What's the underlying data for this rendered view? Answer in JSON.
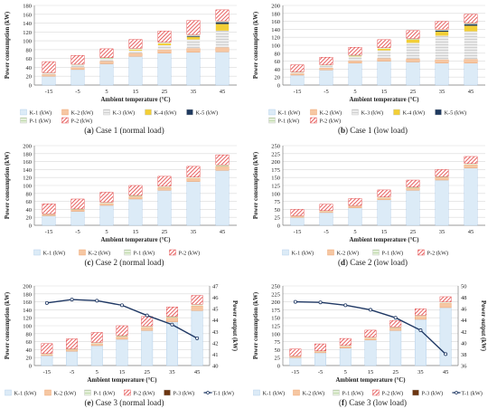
{
  "colors": {
    "K-1": "#dcebf7",
    "K-2": "#f6c7a3",
    "K-3": "#d6d6d6",
    "K-4": "#f3cf36",
    "K-5": "#1f3a5f",
    "P-1": "#d3e6c4",
    "P-2": "#e13a3a",
    "P-3": "#6b3510",
    "T-1": "#1f3864",
    "grid": "#d9d9d9",
    "axis": "#7f7f7f"
  },
  "panels": [
    {
      "label": "(a)",
      "caption": "Case 1 (normal load)",
      "ylabel": "Power consumption (kW)",
      "xlabel": "Ambient temperature (°C)",
      "legend": [
        "K-1 (kW)",
        "K-2 (kW)",
        "K-3 (kW)",
        "K-4 (kW)",
        "K-5 (kW)",
        "P-1 (kW)",
        "P-2 (kW)"
      ]
    },
    {
      "label": "(b)",
      "caption": "Case 1 (low load)",
      "ylabel": "Power consumption (kW)",
      "xlabel": "Ambient temperature (°C)",
      "legend": [
        "K-1 (kW)",
        "K-2 (kW)",
        "K-3 (kW)",
        "K-4 (kW)",
        "K-5 (kW)",
        "P-1 (kW)",
        "P-2 (kW)"
      ]
    },
    {
      "label": "(c)",
      "caption": "Case 2 (normal load)",
      "ylabel": "Power consumption (kW)",
      "xlabel": "Ambient temperature (°C)",
      "legend": [
        "K-1 (kW)",
        "K-2 (kW)",
        "P-1 (kW)",
        "P-2 (kW)"
      ]
    },
    {
      "label": "(d)",
      "caption": "Case 2 (low load)",
      "ylabel": "Power consumption (kW)",
      "xlabel": "Ambient temperature (°C)",
      "legend": [
        "K-1 (kW)",
        "K-2 (kW)",
        "P-1 (kW)",
        "P-2 (kW)"
      ]
    },
    {
      "label": "(e)",
      "caption": "Case 3 (normal load)",
      "ylabel": "Power consumption (kW)",
      "ylabel2": "Power output (kW)",
      "xlabel": "Ambient temperature (°C)",
      "legend": [
        "K-1 (kW)",
        "K-2 (kW)",
        "P-1 (kW)",
        "P-2 (kW)",
        "P-3 (kW)",
        "T-1 (kW)"
      ]
    },
    {
      "label": "(f)",
      "caption": "Case 3 (low load)",
      "ylabel": "Power consumption (kW)",
      "ylabel2": "Power output (kW)",
      "xlabel": "Ambient temperature (°C)",
      "legend": [
        "K-1 (kW)",
        "K-2 (kW)",
        "P-1 (kW)",
        "P-2 (kW)",
        "P-3 (kW)",
        "T-1 (kW)"
      ]
    }
  ],
  "chart_data": [
    {
      "type": "bar",
      "stacked": true,
      "title": "Case 1 (normal load)",
      "categories": [
        "-15",
        "-5",
        "5",
        "15",
        "25",
        "35",
        "45"
      ],
      "xlabel": "Ambient temperature (°C)",
      "ylabel": "Power consumption (kW)",
      "ylim": [
        0,
        180
      ],
      "yticks": [
        0,
        20,
        40,
        60,
        80,
        100,
        120,
        140,
        160,
        180
      ],
      "series": [
        {
          "name": "K-1 (kW)",
          "values": [
            20,
            35,
            48,
            65,
            72,
            74,
            75
          ]
        },
        {
          "name": "K-2 (kW)",
          "values": [
            4,
            5,
            6,
            7,
            8,
            9,
            10
          ]
        },
        {
          "name": "K-3 (kW)",
          "values": [
            2,
            4,
            5,
            6,
            10,
            20,
            38
          ]
        },
        {
          "name": "K-4 (kW)",
          "values": [
            0,
            0,
            0,
            2,
            4,
            6,
            15
          ]
        },
        {
          "name": "K-5 (kW)",
          "values": [
            0,
            0,
            0,
            0,
            0,
            2,
            4
          ]
        },
        {
          "name": "P-1 (kW)",
          "values": [
            2,
            3,
            3,
            3,
            3,
            3,
            3
          ]
        },
        {
          "name": "P-2 (kW)",
          "values": [
            25,
            20,
            20,
            20,
            25,
            32,
            25
          ]
        }
      ]
    },
    {
      "type": "bar",
      "stacked": true,
      "title": "Case 1 (low load)",
      "categories": [
        "-15",
        "-5",
        "5",
        "15",
        "25",
        "35",
        "45"
      ],
      "xlabel": "Ambient temperature (°C)",
      "ylabel": "Power consumption (kW)",
      "ylim": [
        0,
        200
      ],
      "yticks": [
        0,
        20,
        40,
        60,
        80,
        100,
        120,
        140,
        160,
        180,
        200
      ],
      "series": [
        {
          "name": "K-1 (kW)",
          "values": [
            25,
            38,
            55,
            60,
            58,
            55,
            55
          ]
        },
        {
          "name": "K-2 (kW)",
          "values": [
            4,
            5,
            6,
            7,
            8,
            9,
            10
          ]
        },
        {
          "name": "K-3 (kW)",
          "values": [
            2,
            5,
            10,
            20,
            40,
            60,
            70
          ]
        },
        {
          "name": "K-4 (kW)",
          "values": [
            0,
            0,
            1,
            4,
            8,
            10,
            14
          ]
        },
        {
          "name": "K-5 (kW)",
          "values": [
            0,
            0,
            0,
            0,
            0,
            3,
            4
          ]
        },
        {
          "name": "P-1 (kW)",
          "values": [
            2,
            3,
            3,
            3,
            3,
            3,
            3
          ]
        },
        {
          "name": "P-2 (kW)",
          "values": [
            18,
            19,
            20,
            20,
            20,
            20,
            22
          ]
        }
      ]
    },
    {
      "type": "bar",
      "stacked": true,
      "title": "Case 2 (normal load)",
      "categories": [
        "-15",
        "-5",
        "5",
        "15",
        "25",
        "35",
        "45"
      ],
      "xlabel": "Ambient temperature (°C)",
      "ylabel": "Power consumption (kW)",
      "ylim": [
        0,
        200
      ],
      "yticks": [
        0,
        20,
        40,
        60,
        80,
        100,
        120,
        140,
        160,
        180,
        200
      ],
      "series": [
        {
          "name": "K-1 (kW)",
          "values": [
            24,
            35,
            50,
            66,
            88,
            110,
            138
          ]
        },
        {
          "name": "K-2 (kW)",
          "values": [
            3,
            4,
            5,
            6,
            7,
            8,
            10
          ]
        },
        {
          "name": "P-1 (kW)",
          "values": [
            2,
            2,
            3,
            3,
            3,
            3,
            4
          ]
        },
        {
          "name": "P-2 (kW)",
          "values": [
            25,
            25,
            25,
            25,
            25,
            27,
            25
          ]
        }
      ]
    },
    {
      "type": "bar",
      "stacked": true,
      "title": "Case 2 (low load)",
      "categories": [
        "-15",
        "-5",
        "5",
        "15",
        "25",
        "35",
        "45"
      ],
      "xlabel": "Ambient temperature (°C)",
      "ylabel": "Power consumption (kW)",
      "ylim": [
        0,
        250
      ],
      "yticks": [
        0,
        25,
        50,
        75,
        100,
        125,
        150,
        175,
        200,
        225,
        250
      ],
      "series": [
        {
          "name": "K-1 (kW)",
          "values": [
            25,
            40,
            55,
            80,
            110,
            142,
            180
          ]
        },
        {
          "name": "K-2 (kW)",
          "values": [
            3,
            4,
            5,
            6,
            7,
            8,
            10
          ]
        },
        {
          "name": "P-1 (kW)",
          "values": [
            2,
            2,
            2,
            3,
            3,
            3,
            4
          ]
        },
        {
          "name": "P-2 (kW)",
          "values": [
            20,
            20,
            22,
            22,
            22,
            22,
            22
          ]
        }
      ]
    },
    {
      "type": "bar",
      "stacked": true,
      "title": "Case 3 (normal load)",
      "categories": [
        "-15",
        "-5",
        "5",
        "15",
        "25",
        "35",
        "45"
      ],
      "xlabel": "Ambient temperature (°C)",
      "ylabel": "Power consumption (kW)",
      "ylabel2": "Power output (kW)",
      "ylim": [
        0,
        200
      ],
      "yticks": [
        0,
        20,
        40,
        60,
        80,
        100,
        120,
        140,
        160,
        180,
        200
      ],
      "y2lim": [
        40,
        47
      ],
      "y2ticks": [
        40,
        41,
        42,
        43,
        44,
        45,
        46,
        47
      ],
      "series": [
        {
          "name": "K-1 (kW)",
          "values": [
            25,
            36,
            50,
            66,
            88,
            110,
            138
          ]
        },
        {
          "name": "K-2 (kW)",
          "values": [
            3,
            4,
            5,
            6,
            8,
            10,
            12
          ]
        },
        {
          "name": "P-1 (kW)",
          "values": [
            2,
            2,
            3,
            3,
            3,
            3,
            4
          ]
        },
        {
          "name": "P-2 (kW)",
          "values": [
            25,
            25,
            25,
            25,
            24,
            24,
            22
          ]
        },
        {
          "name": "P-3 (kW)",
          "values": [
            0,
            0,
            0,
            0,
            0,
            0,
            0
          ]
        }
      ],
      "line": {
        "name": "T-1 (kW)",
        "values": [
          45.5,
          45.8,
          45.7,
          45.3,
          44.4,
          43.6,
          42.4
        ]
      }
    },
    {
      "type": "bar",
      "stacked": true,
      "title": "Case 3 (low load)",
      "categories": [
        "-15",
        "-5",
        "5",
        "15",
        "25",
        "35",
        "45"
      ],
      "xlabel": "Ambient temperature (°C)",
      "ylabel": "Power consumption (kW)",
      "ylabel2": "Power output (kW)",
      "ylim": [
        0,
        250
      ],
      "yticks": [
        0,
        25,
        50,
        75,
        100,
        125,
        150,
        175,
        200,
        225,
        250
      ],
      "y2lim": [
        36,
        50
      ],
      "y2ticks": [
        36,
        38,
        40,
        42,
        44,
        46,
        48,
        50
      ],
      "series": [
        {
          "name": "K-1 (kW)",
          "values": [
            25,
            40,
            55,
            80,
            110,
            145,
            182
          ]
        },
        {
          "name": "K-2 (kW)",
          "values": [
            3,
            4,
            5,
            6,
            8,
            10,
            14
          ]
        },
        {
          "name": "P-1 (kW)",
          "values": [
            2,
            2,
            3,
            3,
            3,
            3,
            4
          ]
        },
        {
          "name": "P-2 (kW)",
          "values": [
            22,
            22,
            22,
            22,
            20,
            20,
            16
          ]
        },
        {
          "name": "P-3 (kW)",
          "values": [
            0,
            0,
            0,
            0,
            0,
            0,
            0
          ]
        }
      ],
      "line": {
        "name": "T-1 (kW)",
        "values": [
          47.2,
          47.1,
          46.6,
          45.8,
          44.4,
          42.2,
          38.0
        ]
      }
    }
  ]
}
